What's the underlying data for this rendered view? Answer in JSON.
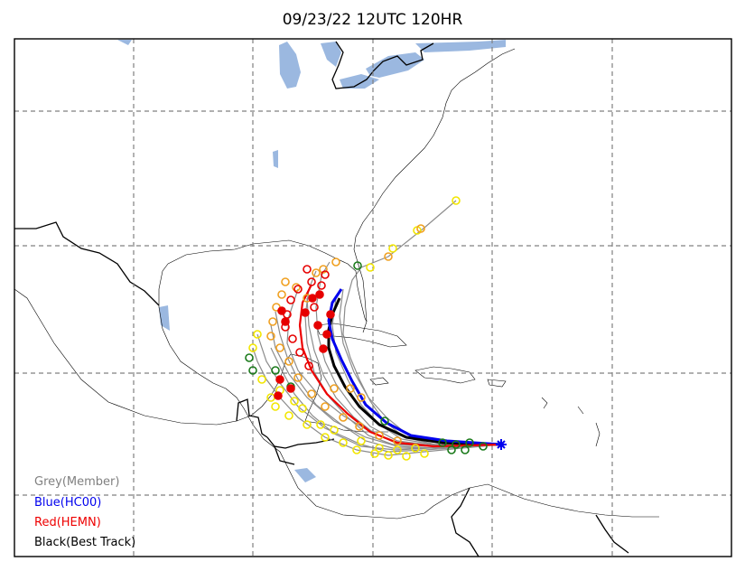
{
  "title": "09/23/22 12UTC 120HR",
  "legend": {
    "member": "Grey(Member)",
    "hc00": "Blue(HC00)",
    "hemn": "Red(HEMN)",
    "best": "Black(Best Track)"
  },
  "colors": {
    "member": "#808080",
    "hc00": "#0000ee",
    "hemn": "#ee0000",
    "best": "#000000",
    "water": "#9bb8e0",
    "grid": "#808080"
  },
  "marker_colors": {
    "yellow": "#f2e600",
    "orange": "#f0a020",
    "green": "#1a7a1a",
    "red": "#e60000"
  }
}
